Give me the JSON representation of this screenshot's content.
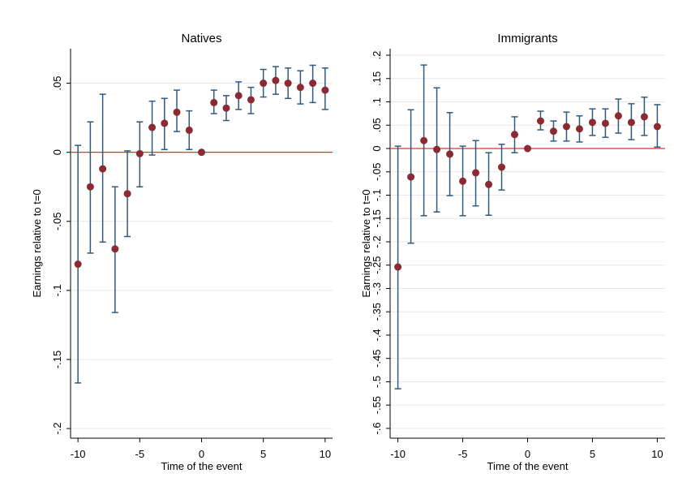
{
  "chart_data": [
    {
      "type": "errorbar",
      "title": "Natives",
      "xlabel": "Time of the event",
      "ylabel": "Earnings relative to t=0",
      "x": [
        -10,
        -9,
        -8,
        -7,
        -6,
        -5,
        -4,
        -3,
        -2,
        -1,
        0,
        1,
        2,
        3,
        4,
        5,
        6,
        7,
        8,
        9,
        10
      ],
      "values": [
        -0.081,
        -0.025,
        -0.012,
        -0.07,
        -0.03,
        -0.001,
        0.018,
        0.021,
        0.029,
        0.016,
        0,
        0.036,
        0.032,
        0.041,
        0.038,
        0.05,
        0.052,
        0.05,
        0.047,
        0.05,
        0.045
      ],
      "lower": [
        -0.167,
        -0.073,
        -0.065,
        -0.116,
        -0.061,
        -0.025,
        -0.002,
        0.002,
        0.015,
        0.002,
        0,
        0.028,
        0.023,
        0.031,
        0.028,
        0.04,
        0.042,
        0.039,
        0.035,
        0.036,
        0.031
      ],
      "upper": [
        0.005,
        0.022,
        0.042,
        -0.025,
        0.001,
        0.022,
        0.037,
        0.039,
        0.045,
        0.03,
        0,
        0.045,
        0.041,
        0.051,
        0.047,
        0.06,
        0.062,
        0.061,
        0.059,
        0.063,
        0.061
      ],
      "color": "#8b2a32",
      "ci_color": "#2f5a7e",
      "hline": 0,
      "hline_color": "#e03030",
      "xlim": [
        -10.6,
        10.6
      ],
      "xticks": [
        -10,
        -5,
        0,
        5,
        10
      ],
      "ylim": [
        -0.207,
        0.075
      ],
      "yticks": [
        {
          "value": 0.05,
          "label": ".05"
        },
        0,
        {
          "value": -0.05,
          "label": "-.05"
        },
        {
          "value": -0.1,
          "label": "-.1"
        },
        {
          "value": -0.15,
          "label": "-.15"
        },
        {
          "value": -0.2,
          "label": "-.2"
        }
      ],
      "grid": true
    },
    {
      "type": "errorbar",
      "title": "Immigrants",
      "xlabel": "Time of the event",
      "ylabel": "Earnings relative to t=0",
      "x": [
        -10,
        -9,
        -8,
        -7,
        -6,
        -5,
        -4,
        -3,
        -2,
        -1,
        0,
        1,
        2,
        3,
        4,
        5,
        6,
        7,
        8,
        9,
        10
      ],
      "values": [
        -0.254,
        -0.061,
        0.017,
        -0.002,
        -0.012,
        -0.07,
        -0.052,
        -0.077,
        -0.04,
        0.03,
        0,
        0.059,
        0.037,
        0.047,
        0.042,
        0.056,
        0.054,
        0.07,
        0.056,
        0.068,
        0.047
      ],
      "lower": [
        -0.515,
        -0.203,
        -0.144,
        -0.136,
        -0.101,
        -0.144,
        -0.123,
        -0.143,
        -0.089,
        -0.009,
        0,
        0.04,
        0.016,
        0.016,
        0.014,
        0.028,
        0.024,
        0.033,
        0.019,
        0.028,
        0.003
      ],
      "upper": [
        0.005,
        0.083,
        0.179,
        0.13,
        0.077,
        0.005,
        0.017,
        -0.009,
        0.009,
        0.068,
        0,
        0.08,
        0.059,
        0.078,
        0.07,
        0.085,
        0.085,
        0.106,
        0.096,
        0.11,
        0.094
      ],
      "color": "#8b2a32",
      "ci_color": "#2f5a7e",
      "hline": 0,
      "hline_color": "#e03030",
      "xlim": [
        -10.6,
        10.6
      ],
      "xticks": [
        -10,
        -5,
        0,
        5,
        10
      ],
      "ylim": [
        -0.621,
        0.214
      ],
      "yticks": [
        {
          "value": 0.2,
          "label": ".2"
        },
        {
          "value": 0.15,
          "label": ".15"
        },
        {
          "value": 0.1,
          "label": ".1"
        },
        {
          "value": 0.05,
          "label": ".05"
        },
        0,
        {
          "value": -0.05,
          "label": "-.05"
        },
        {
          "value": -0.1,
          "label": "-.1"
        },
        {
          "value": -0.15,
          "label": "-.15"
        },
        {
          "value": -0.2,
          "label": "-.2"
        },
        {
          "value": -0.25,
          "label": "-.25"
        },
        {
          "value": -0.3,
          "label": "-.3"
        },
        {
          "value": -0.35,
          "label": "-.35"
        },
        {
          "value": -0.4,
          "label": "-.4"
        },
        {
          "value": -0.45,
          "label": "-.45"
        },
        {
          "value": -0.5,
          "label": "-.5"
        },
        {
          "value": -0.55,
          "label": "-.55"
        },
        {
          "value": -0.6,
          "label": "-.6"
        }
      ],
      "grid": true
    }
  ]
}
